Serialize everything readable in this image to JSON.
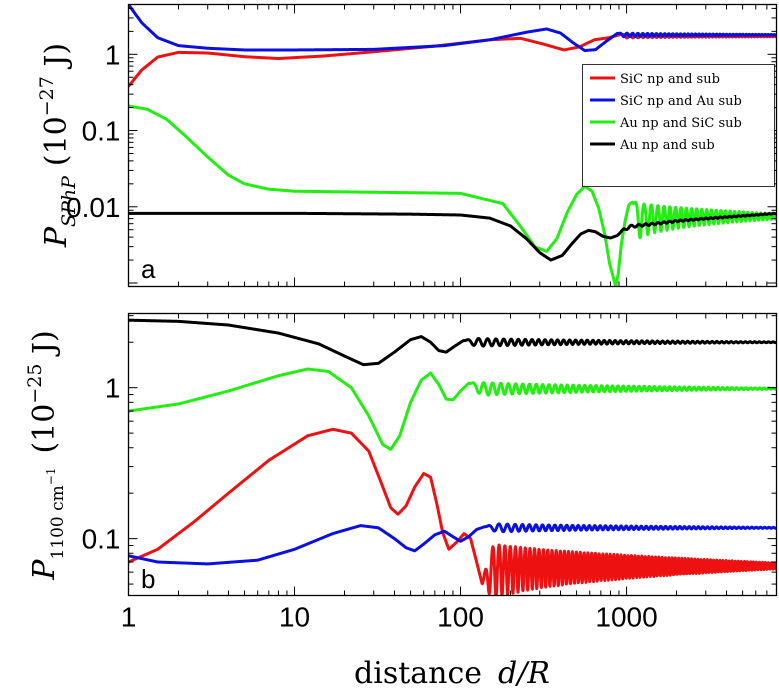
{
  "chart_data": [
    {
      "type": "line",
      "panel_label": "a",
      "title": "",
      "ylabel_main": "P",
      "ylabel_sub": "SPhP",
      "ylabel_unit": "(10",
      "ylabel_exp": "−27",
      "ylabel_unit_end": " J)",
      "xscale": "log",
      "yscale": "log",
      "xlim": [
        1,
        8000
      ],
      "ylim": [
        0.0009,
        4.5
      ],
      "yticks": [
        {
          "v": 0.01,
          "label": "0.01"
        },
        {
          "v": 0.1,
          "label": "0.1"
        },
        {
          "v": 1,
          "label": "1"
        }
      ],
      "xticks": [
        {
          "v": 1,
          "label": "1"
        },
        {
          "v": 10,
          "label": "10"
        },
        {
          "v": 100,
          "label": "100"
        },
        {
          "v": 1000,
          "label": "1000"
        }
      ],
      "legend": {
        "placement": "right",
        "entries": [
          {
            "name": "SiC np and sub",
            "color": "#ee1111"
          },
          {
            "name": "SiC np and Au sub",
            "color": "#0a10e0"
          },
          {
            "name": "Au np and SiC sub",
            "color": "#22ee11"
          },
          {
            "name": "Au np and sub",
            "color": "#000000"
          }
        ]
      },
      "series": [
        {
          "name": "SiC np and sub",
          "color": "#ee1111",
          "points": [
            [
              1,
              0.38
            ],
            [
              1.2,
              0.62
            ],
            [
              1.5,
              0.92
            ],
            [
              2,
              1.06
            ],
            [
              3,
              1.04
            ],
            [
              5,
              0.93
            ],
            [
              8,
              0.88
            ],
            [
              15,
              0.95
            ],
            [
              30,
              1.08
            ],
            [
              70,
              1.28
            ],
            [
              150,
              1.55
            ],
            [
              230,
              1.62
            ],
            [
              320,
              1.35
            ],
            [
              420,
              1.14
            ],
            [
              520,
              1.25
            ],
            [
              640,
              1.55
            ],
            [
              780,
              1.65
            ],
            [
              920,
              1.82
            ]
          ],
          "osc": {
            "start": 920,
            "end": 8000,
            "center": 1.72,
            "amp": [
              0.1,
              0.02
            ],
            "cycles": 42
          }
        },
        {
          "name": "SiC np and Au sub",
          "color": "#0a10e0",
          "points": [
            [
              1,
              4.5
            ],
            [
              1.2,
              2.6
            ],
            [
              1.5,
              1.65
            ],
            [
              2,
              1.3
            ],
            [
              3,
              1.2
            ],
            [
              5,
              1.14
            ],
            [
              10,
              1.14
            ],
            [
              30,
              1.16
            ],
            [
              80,
              1.3
            ],
            [
              150,
              1.55
            ],
            [
              250,
              1.95
            ],
            [
              330,
              2.15
            ],
            [
              400,
              1.9
            ],
            [
              480,
              1.4
            ],
            [
              560,
              1.12
            ],
            [
              650,
              1.15
            ],
            [
              760,
              1.5
            ],
            [
              880,
              1.88
            ]
          ],
          "osc": {
            "start": 880,
            "end": 8000,
            "center": 1.8,
            "amp": [
              0.12,
              0.02
            ],
            "cycles": 42
          }
        },
        {
          "name": "Au np and SiC sub",
          "color": "#22ee11",
          "points": [
            [
              1,
              0.21
            ],
            [
              1.3,
              0.19
            ],
            [
              1.7,
              0.14
            ],
            [
              2.2,
              0.085
            ],
            [
              3,
              0.045
            ],
            [
              4,
              0.026
            ],
            [
              5,
              0.02
            ],
            [
              7,
              0.017
            ],
            [
              10,
              0.016
            ],
            [
              30,
              0.0155
            ],
            [
              100,
              0.015
            ],
            [
              180,
              0.011
            ],
            [
              230,
              0.0055
            ],
            [
              280,
              0.003
            ],
            [
              330,
              0.0026
            ],
            [
              380,
              0.0038
            ],
            [
              440,
              0.0085
            ],
            [
              500,
              0.0145
            ],
            [
              560,
              0.0185
            ],
            [
              620,
              0.016
            ],
            [
              680,
              0.0095
            ],
            [
              740,
              0.0043
            ],
            [
              790,
              0.0018
            ],
            [
              830,
              0.0012
            ],
            [
              860,
              0.0009
            ],
            [
              890,
              0.0013
            ],
            [
              930,
              0.0032
            ],
            [
              980,
              0.0065
            ],
            [
              1030,
              0.0105
            ],
            [
              1080,
              0.0115
            ]
          ],
          "osc": {
            "start": 1080,
            "end": 8000,
            "center": 0.0075,
            "amp": [
              0.0045,
              0.0006
            ],
            "cycles": 28
          }
        },
        {
          "name": "Au np and sub",
          "color": "#000000",
          "points": [
            [
              1,
              0.0082
            ],
            [
              10,
              0.0082
            ],
            [
              50,
              0.008
            ],
            [
              100,
              0.0078
            ],
            [
              150,
              0.0071
            ],
            [
              200,
              0.0056
            ],
            [
              250,
              0.0038
            ],
            [
              300,
              0.0025
            ],
            [
              350,
              0.002
            ],
            [
              410,
              0.0023
            ],
            [
              470,
              0.0033
            ],
            [
              530,
              0.0044
            ],
            [
              590,
              0.0049
            ],
            [
              650,
              0.0047
            ],
            [
              720,
              0.0041
            ],
            [
              800,
              0.0039
            ],
            [
              880,
              0.0042
            ],
            [
              960,
              0.005
            ],
            [
              1050,
              0.0055
            ],
            [
              1200,
              0.0057
            ],
            [
              1500,
              0.006
            ],
            [
              2000,
              0.0065
            ],
            [
              3000,
              0.007
            ],
            [
              5000,
              0.0076
            ],
            [
              8000,
              0.0082
            ]
          ],
          "osc": {
            "start": 900,
            "end": 8000,
            "center": 0,
            "amp": [
              0.00025,
              8e-05
            ],
            "cycles": 30
          }
        }
      ]
    },
    {
      "type": "line",
      "panel_label": "b",
      "title": "",
      "ylabel_main": "P",
      "ylabel_sub": "1100 cm",
      "ylabel_sub_exp": "−1",
      "ylabel_unit": "(10",
      "ylabel_exp": "−25",
      "ylabel_unit_end": " J)",
      "xlabel": "distance",
      "xlabel_math": "d/R",
      "xscale": "log",
      "yscale": "log",
      "xlim": [
        1,
        8000
      ],
      "ylim": [
        0.042,
        3.1
      ],
      "yticks": [
        {
          "v": 0.1,
          "label": "0.1"
        },
        {
          "v": 1,
          "label": "1"
        }
      ],
      "xticks": [
        {
          "v": 1,
          "label": "1"
        },
        {
          "v": 10,
          "label": "10"
        },
        {
          "v": 100,
          "label": "100"
        },
        {
          "v": 1000,
          "label": "1000"
        }
      ],
      "series": [
        {
          "name": "SiC np and sub",
          "color": "#ee1111",
          "points": [
            [
              1,
              0.07
            ],
            [
              1.5,
              0.085
            ],
            [
              2.5,
              0.13
            ],
            [
              4,
              0.2
            ],
            [
              7,
              0.33
            ],
            [
              12,
              0.48
            ],
            [
              17,
              0.53
            ],
            [
              22,
              0.5
            ],
            [
              28,
              0.38
            ],
            [
              33,
              0.24
            ],
            [
              38,
              0.16
            ],
            [
              42,
              0.145
            ],
            [
              47,
              0.165
            ],
            [
              53,
              0.22
            ],
            [
              60,
              0.27
            ],
            [
              66,
              0.255
            ],
            [
              72,
              0.17
            ],
            [
              78,
              0.11
            ],
            [
              85,
              0.085
            ],
            [
              95,
              0.095
            ],
            [
              105,
              0.108
            ],
            [
              115,
              0.1
            ],
            [
              125,
              0.07
            ],
            [
              135,
              0.05
            ]
          ],
          "osc": {
            "start": 135,
            "end": 8000,
            "center": 0.066,
            "amp": [
              0.032,
              0.003
            ],
            "cycles": 80
          }
        },
        {
          "name": "SiC np and Au sub",
          "color": "#0a10e0",
          "points": [
            [
              1,
              0.077
            ],
            [
              1.5,
              0.07
            ],
            [
              3,
              0.068
            ],
            [
              6,
              0.072
            ],
            [
              10,
              0.085
            ],
            [
              17,
              0.108
            ],
            [
              25,
              0.122
            ],
            [
              32,
              0.118
            ],
            [
              40,
              0.1
            ],
            [
              47,
              0.087
            ],
            [
              53,
              0.083
            ],
            [
              60,
              0.092
            ],
            [
              70,
              0.106
            ],
            [
              80,
              0.112
            ],
            [
              90,
              0.103
            ],
            [
              100,
              0.096
            ],
            [
              112,
              0.103
            ],
            [
              125,
              0.115
            ],
            [
              140,
              0.12
            ]
          ],
          "osc": {
            "start": 140,
            "end": 8000,
            "center": 0.118,
            "amp": [
              0.009,
              0.0008
            ],
            "cycles": 55
          }
        },
        {
          "name": "Au np and SiC sub",
          "color": "#22ee11",
          "points": [
            [
              1,
              0.7
            ],
            [
              2,
              0.78
            ],
            [
              4,
              0.95
            ],
            [
              8,
              1.2
            ],
            [
              12,
              1.33
            ],
            [
              16,
              1.28
            ],
            [
              22,
              1.0
            ],
            [
              28,
              0.65
            ],
            [
              34,
              0.42
            ],
            [
              38,
              0.39
            ],
            [
              43,
              0.48
            ],
            [
              50,
              0.8
            ],
            [
              58,
              1.12
            ],
            [
              66,
              1.25
            ],
            [
              74,
              1.05
            ],
            [
              82,
              0.84
            ],
            [
              90,
              0.83
            ],
            [
              100,
              0.95
            ],
            [
              112,
              1.07
            ]
          ],
          "osc": {
            "start": 112,
            "end": 8000,
            "center": 0.985,
            "amp": [
              0.12,
              0.008
            ],
            "cycles": 55
          }
        },
        {
          "name": "Au np and sub",
          "color": "#000000",
          "points": [
            [
              1,
              2.8
            ],
            [
              2,
              2.75
            ],
            [
              4,
              2.6
            ],
            [
              8,
              2.3
            ],
            [
              14,
              1.95
            ],
            [
              20,
              1.62
            ],
            [
              26,
              1.42
            ],
            [
              32,
              1.45
            ],
            [
              40,
              1.72
            ],
            [
              50,
              2.08
            ],
            [
              58,
              2.18
            ],
            [
              66,
              2.0
            ],
            [
              74,
              1.76
            ],
            [
              82,
              1.72
            ],
            [
              92,
              1.88
            ],
            [
              104,
              2.05
            ]
          ],
          "osc": {
            "start": 104,
            "end": 8000,
            "center": 2.0,
            "amp": [
              0.15,
              0.01
            ],
            "cycles": 55
          }
        }
      ]
    }
  ]
}
